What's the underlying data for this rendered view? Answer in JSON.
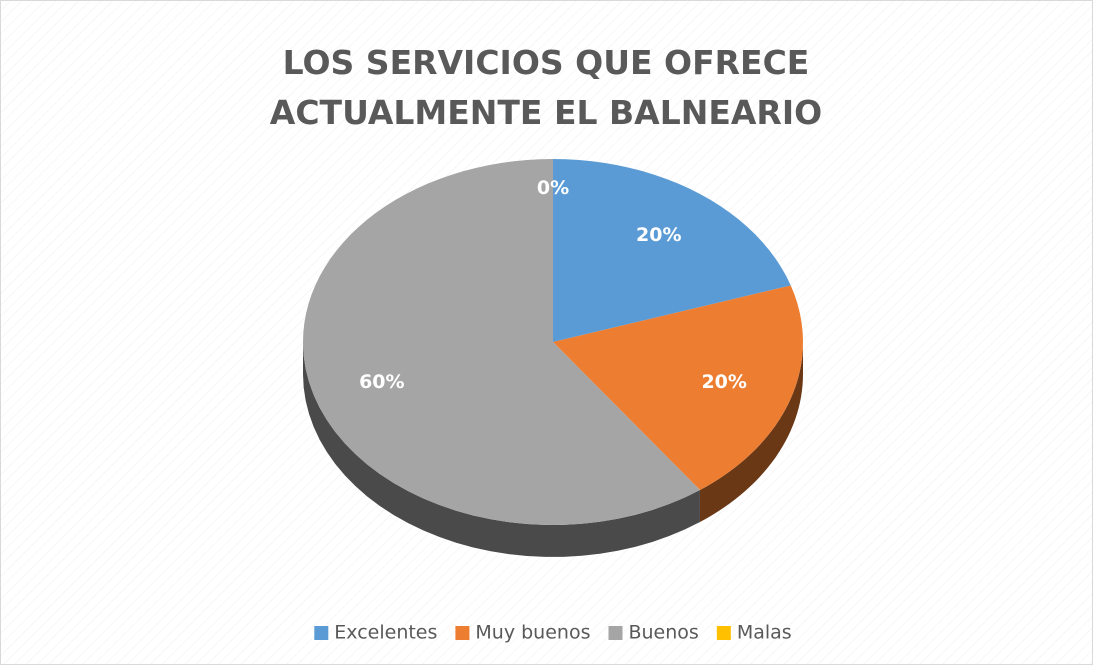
{
  "chart_data": {
    "type": "pie",
    "title": "LOS SERVICIOS QUE OFRECE ACTUALMENTE EL BALNEARIO",
    "categories": [
      "Excelentes",
      "Muy buenos",
      "Buenos",
      "Malas"
    ],
    "values": [
      20,
      20,
      60,
      0
    ],
    "value_labels": [
      "20%",
      "20%",
      "60%",
      "0%"
    ],
    "colors": [
      "#5b9bd5",
      "#ed7d31",
      "#a5a5a5",
      "#ffc000"
    ],
    "legend": "bottom"
  }
}
